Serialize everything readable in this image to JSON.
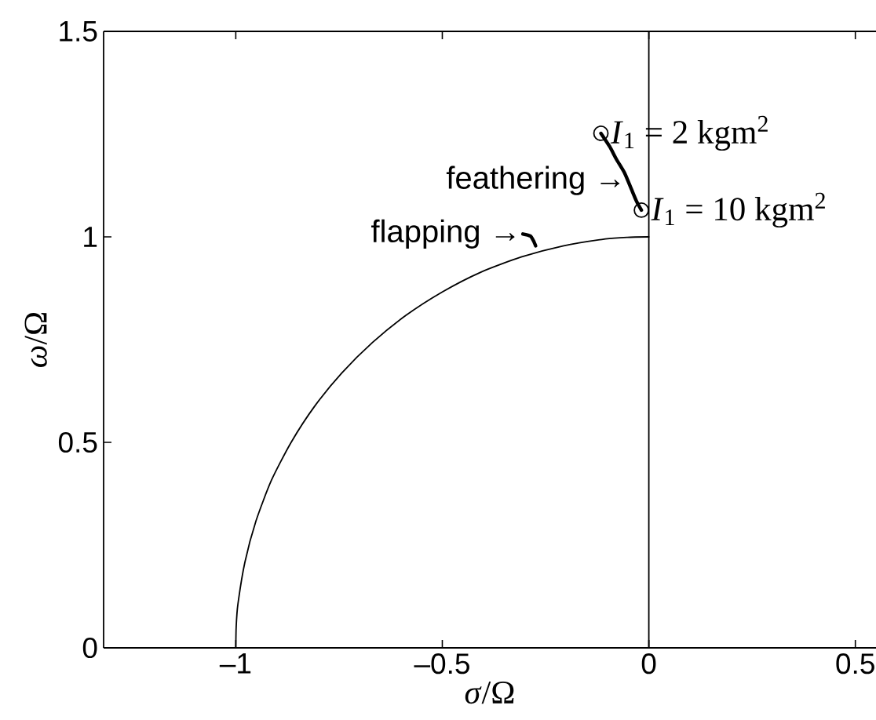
{
  "chart_data": {
    "type": "line",
    "xlabel": "*σ*/Ω",
    "ylabel": "*ω*/Ω",
    "xlim": [
      -1.32,
      0.55
    ],
    "ylim": [
      0,
      1.5
    ],
    "xticks": [
      {
        "value": -1,
        "label": "–1"
      },
      {
        "value": -0.5,
        "label": "–0.5"
      },
      0,
      0.5
    ],
    "yticks": [
      0,
      0.5,
      1,
      1.5
    ],
    "series": [
      {
        "color": "#000000",
        "marker": "none",
        "line_style": "solid",
        "x": [
          -1,
          -0.999,
          -0.995,
          -0.978,
          -0.951,
          -0.914,
          -0.866,
          -0.809,
          -0.743,
          -0.669,
          -0.588,
          -0.5,
          -0.407,
          -0.309,
          -0.208,
          -0.105,
          -0.052,
          0
        ],
        "values": [
          0,
          0.052,
          0.105,
          0.208,
          0.309,
          0.407,
          0.5,
          0.588,
          0.669,
          0.743,
          0.809,
          0.866,
          0.914,
          0.951,
          0.978,
          0.995,
          0.999,
          1
        ]
      },
      {
        "color": "#000000",
        "marker": "none",
        "line_style": "solid",
        "x": [
          -0.116,
          -0.095,
          -0.078,
          -0.059,
          -0.043,
          -0.03,
          -0.018
        ],
        "values": [
          1.252,
          1.22,
          1.188,
          1.156,
          1.118,
          1.087,
          1.065
        ]
      },
      {
        "color": "#000000",
        "marker": "none",
        "line_style": "solid",
        "x": [
          -0.305,
          -0.287,
          -0.279,
          -0.274
        ],
        "values": [
          1.007,
          1.002,
          0.99,
          0.978
        ]
      },
      {
        "type": "scatter",
        "color": "#000000",
        "marker": "circle",
        "x": [
          -0.116,
          -0.018
        ],
        "values": [
          1.252,
          1.065
        ]
      }
    ],
    "ref_lines": [
      {
        "axis": "x",
        "value": 0,
        "color": "#000000"
      }
    ],
    "annotations": [
      {
        "text": "feathering →",
        "x": -0.051,
        "y": 1.137
      },
      {
        "text": "flapping →",
        "x": -0.305,
        "y": 1.007
      },
      {
        "text": "*I*$_{1}$ = 2 kgm$^{2}$",
        "x": -0.116,
        "y": 1.252
      },
      {
        "text": "*I*$_{1}$ = 10 kgm$^{2}$",
        "x": -0.018,
        "y": 1.065
      }
    ]
  }
}
